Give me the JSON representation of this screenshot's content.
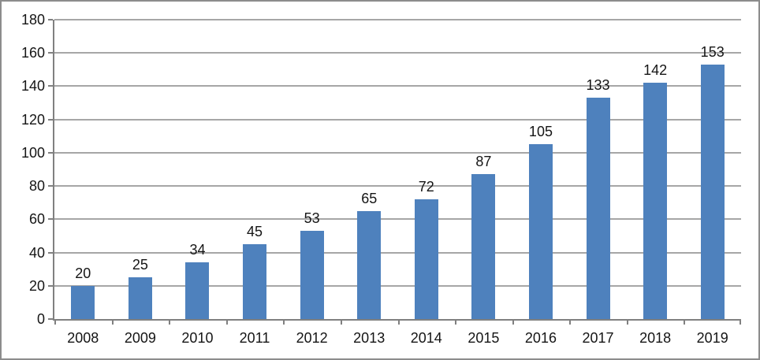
{
  "chart_data": {
    "type": "bar",
    "title": "",
    "xlabel": "",
    "ylabel": "",
    "categories": [
      "2008",
      "2009",
      "2010",
      "2011",
      "2012",
      "2013",
      "2014",
      "2015",
      "2016",
      "2017",
      "2018",
      "2019"
    ],
    "values": [
      20,
      25,
      34,
      45,
      53,
      65,
      72,
      87,
      105,
      133,
      142,
      153
    ],
    "data_labels": [
      "20",
      "25",
      "34",
      "45",
      "53",
      "65",
      "72",
      "87",
      "105",
      "133",
      "142",
      "153"
    ],
    "ylim": [
      0,
      180
    ],
    "ytick_step": 20,
    "ytick_labels": [
      "0",
      "20",
      "40",
      "60",
      "80",
      "100",
      "120",
      "140",
      "160",
      "180"
    ],
    "grid": true,
    "legend_position": "none",
    "colors": {
      "bar": "#4e81bd",
      "gridline": "#a6a6a6",
      "axis": "#808080",
      "text": "#151515",
      "frame_border": "#8c8c8c",
      "background": "#ffffff"
    }
  }
}
